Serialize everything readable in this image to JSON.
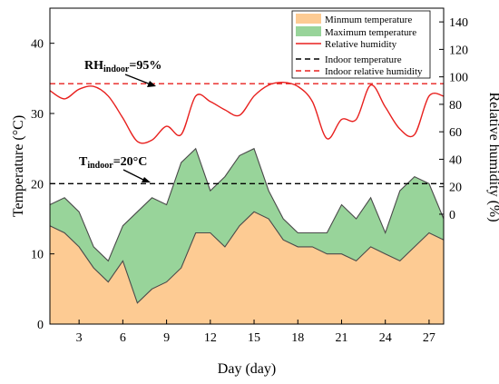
{
  "chart_data": {
    "type": "area",
    "xlabel": "Day (day)",
    "ylabel_left": "Temperature (°C)",
    "ylabel_right": "Relative humidity (%)",
    "xlim": [
      1,
      28
    ],
    "ylim_left": [
      0,
      45
    ],
    "ylim_right": [
      -80,
      150
    ],
    "x_ticks": [
      "3",
      "6",
      "9",
      "12",
      "15",
      "18",
      "21",
      "24",
      "27"
    ],
    "y_left_ticks": [
      "0",
      "10",
      "20",
      "30",
      "40"
    ],
    "y_right_ticks": [
      "0",
      "20",
      "40",
      "60",
      "80",
      "100",
      "120",
      "140"
    ],
    "x": [
      1,
      2,
      3,
      4,
      5,
      6,
      7,
      8,
      9,
      10,
      11,
      12,
      13,
      14,
      15,
      16,
      17,
      18,
      19,
      20,
      21,
      22,
      23,
      24,
      25,
      26,
      27,
      28
    ],
    "series": [
      {
        "name": "Minmum temperature",
        "axis": "left",
        "color": "#FDCB93",
        "values": [
          14,
          13,
          11,
          8,
          6,
          9,
          3,
          5,
          6,
          8,
          13,
          13,
          11,
          14,
          16,
          15,
          12,
          11,
          11,
          10,
          10,
          9,
          11,
          10,
          9,
          11,
          13,
          12
        ]
      },
      {
        "name": "Maximum temperature",
        "axis": "left",
        "color": "#98D49A",
        "values": [
          17,
          18,
          16,
          11,
          9,
          14,
          16,
          18,
          17,
          23,
          25,
          19,
          21,
          24,
          25,
          19,
          15,
          13,
          13,
          13,
          17,
          15,
          18,
          13,
          19,
          21,
          20,
          15
        ]
      },
      {
        "name": "Relative humidity",
        "axis": "right",
        "color": "#E8201E",
        "values": [
          90,
          84,
          91,
          93,
          86,
          70,
          53,
          54,
          64,
          58,
          86,
          82,
          76,
          72,
          86,
          94,
          96,
          93,
          82,
          55,
          69,
          69,
          94,
          78,
          62,
          58,
          86,
          86
        ]
      },
      {
        "name": "Indoor temperature",
        "axis": "left",
        "color": "#000000",
        "value": 20
      },
      {
        "name": "Indoor relative humidity",
        "axis": "right",
        "color": "#E8201E",
        "value": 95
      }
    ],
    "annotations": [
      {
        "main": "RH",
        "sub": "indoor",
        "tail": "=95%"
      },
      {
        "main": "T",
        "sub": "indoor",
        "tail": "=20°C"
      }
    ],
    "legend_position": "top-right",
    "grid": false
  }
}
